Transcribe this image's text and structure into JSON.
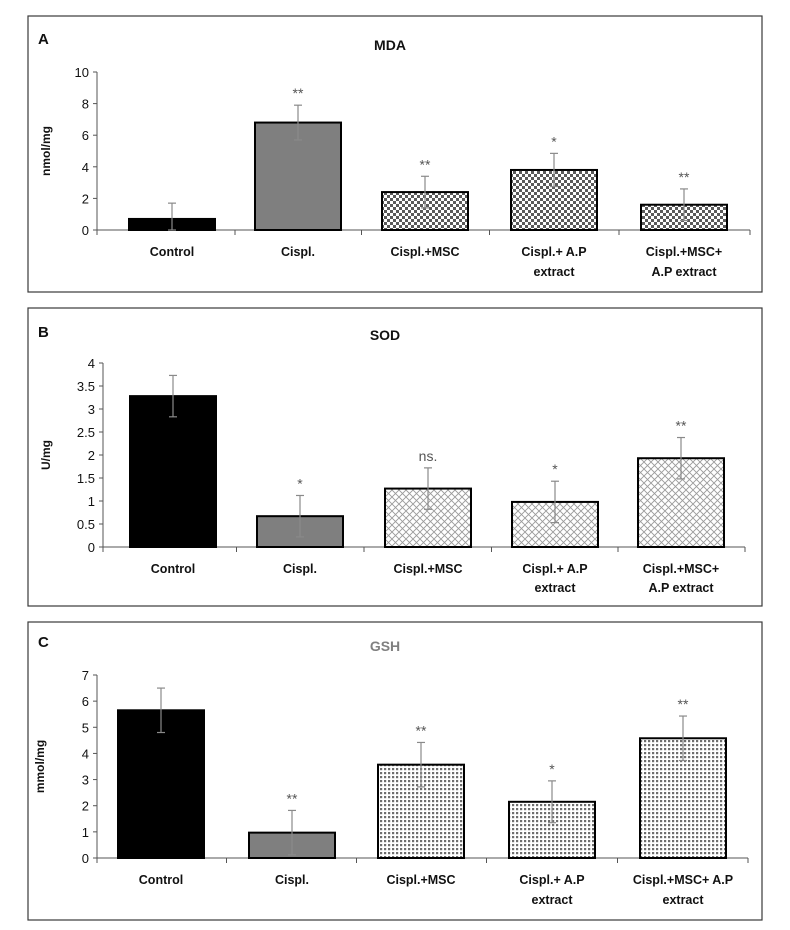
{
  "chart_data": [
    {
      "panel": "A",
      "type": "bar",
      "title": "MDA",
      "title_color": "#111111",
      "ylabel": "nmol/mg",
      "ylim": [
        0,
        10
      ],
      "yticks": [
        "0",
        "2",
        "4",
        "6",
        "8",
        "10"
      ],
      "categories": [
        [
          "Control"
        ],
        [
          "Cispl."
        ],
        [
          "Cispl.+MSC"
        ],
        [
          "Cispl.+ A.P",
          "extract"
        ],
        [
          "Cispl.+MSC+",
          "A.P extract"
        ]
      ],
      "values": [
        0.7,
        6.8,
        2.4,
        3.8,
        1.6
      ],
      "errors": [
        1.0,
        1.1,
        1.0,
        1.05,
        1.0
      ],
      "significance": [
        "",
        "**",
        "**",
        "*",
        "**"
      ],
      "fills": [
        "solid-black",
        "solid-gray",
        "checker",
        "checker",
        "checker"
      ]
    },
    {
      "panel": "B",
      "type": "bar",
      "title": "SOD",
      "title_color": "#111111",
      "ylabel": "U/mg",
      "ylim": [
        0,
        4
      ],
      "yticks": [
        "0",
        "0.5",
        "1",
        "1.5",
        "2",
        "2.5",
        "3",
        "3.5",
        "4"
      ],
      "categories": [
        [
          "Control"
        ],
        [
          "Cispl."
        ],
        [
          "Cispl.+MSC"
        ],
        [
          "Cispl.+ A.P",
          "extract"
        ],
        [
          "Cispl.+MSC+",
          "A.P extract"
        ]
      ],
      "values": [
        3.28,
        0.67,
        1.27,
        0.98,
        1.93
      ],
      "errors": [
        0.45,
        0.45,
        0.45,
        0.45,
        0.45
      ],
      "significance": [
        "",
        "*",
        "ns.",
        "*",
        "**"
      ],
      "fills": [
        "solid-black",
        "solid-gray",
        "crosshatch",
        "crosshatch",
        "crosshatch"
      ]
    },
    {
      "panel": "C",
      "type": "bar",
      "title": "GSH",
      "title_color": "#808080",
      "ylabel": "mmol/mg",
      "ylim": [
        0,
        7
      ],
      "yticks": [
        "0",
        "1",
        "2",
        "3",
        "4",
        "5",
        "6",
        "7"
      ],
      "categories": [
        [
          "Control"
        ],
        [
          "Cispl."
        ],
        [
          "Cispl.+MSC"
        ],
        [
          "Cispl.+ A.P",
          "extract"
        ],
        [
          "Cispl.+MSC+ A.P",
          "extract"
        ]
      ],
      "values": [
        5.65,
        0.97,
        3.57,
        2.15,
        4.58
      ],
      "errors": [
        0.85,
        0.85,
        0.85,
        0.8,
        0.85
      ],
      "significance": [
        "",
        "**",
        "**",
        "*",
        "**"
      ],
      "fills": [
        "solid-black",
        "solid-gray",
        "grid",
        "grid",
        "grid"
      ]
    }
  ]
}
